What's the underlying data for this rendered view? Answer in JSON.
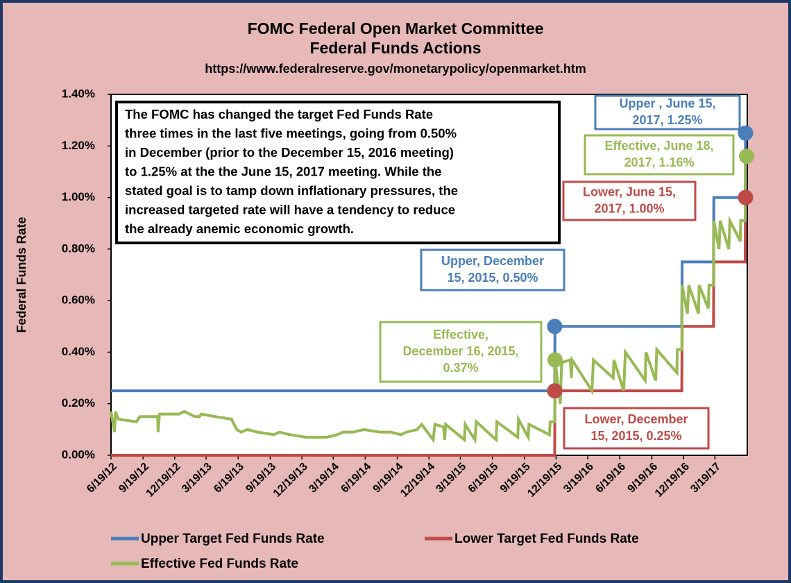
{
  "chart_data": {
    "type": "line",
    "title": "FOMC Federal Open Market Committee",
    "subtitle": "Federal Funds Actions",
    "source": "https://www.federalreserve.gov/monetarypolicy/openmarket.htm",
    "y_label": "Federal Funds Rate",
    "xlim": [
      "2012-06-19",
      "2017-06-20"
    ],
    "xticks": [
      {
        "value": "2012-06-19",
        "label": "6/19/12"
      },
      {
        "value": "2012-09-19",
        "label": "9/19/12"
      },
      {
        "value": "2012-12-19",
        "label": "12/19/12"
      },
      {
        "value": "2013-03-19",
        "label": "3/19/13"
      },
      {
        "value": "2013-06-19",
        "label": "6/19/13"
      },
      {
        "value": "2013-09-19",
        "label": "9/19/13"
      },
      {
        "value": "2013-12-19",
        "label": "12/19/13"
      },
      {
        "value": "2014-03-19",
        "label": "3/19/14"
      },
      {
        "value": "2014-06-19",
        "label": "6/19/14"
      },
      {
        "value": "2014-09-19",
        "label": "9/19/14"
      },
      {
        "value": "2014-12-19",
        "label": "12/19/14"
      },
      {
        "value": "2015-03-19",
        "label": "3/19/15"
      },
      {
        "value": "2015-06-19",
        "label": "6/19/15"
      },
      {
        "value": "2015-09-19",
        "label": "9/19/15"
      },
      {
        "value": "2015-12-19",
        "label": "12/19/15"
      },
      {
        "value": "2016-03-19",
        "label": "3/19/16"
      },
      {
        "value": "2016-06-19",
        "label": "6/19/16"
      },
      {
        "value": "2016-09-19",
        "label": "9/19/16"
      },
      {
        "value": "2016-12-19",
        "label": "12/19/16"
      },
      {
        "value": "2017-03-19",
        "label": "3/19/17"
      }
    ],
    "ylim": [
      0,
      1.4
    ],
    "yticks": [
      {
        "value": 0,
        "label": "0.00%"
      },
      {
        "value": 0.2,
        "label": "0.20%"
      },
      {
        "value": 0.4,
        "label": "0.40%"
      },
      {
        "value": 0.6,
        "label": "0.60%"
      },
      {
        "value": 0.8,
        "label": "0.80%"
      },
      {
        "value": 1.0,
        "label": "1.00%"
      },
      {
        "value": 1.2,
        "label": "1.20%"
      },
      {
        "value": 1.4,
        "label": "1.40%"
      }
    ],
    "grid": false,
    "legend": "bottom",
    "series": [
      {
        "name": "Upper Target Fed Funds Rate",
        "color": "#4a7ebb",
        "x": [
          "2012-06-19",
          "2015-12-15",
          "2015-12-16",
          "2016-12-14",
          "2016-12-15",
          "2017-03-15",
          "2017-03-16",
          "2017-06-14",
          "2017-06-15",
          "2017-06-18"
        ],
        "values": [
          0.25,
          0.25,
          0.5,
          0.5,
          0.75,
          0.75,
          1.0,
          1.0,
          1.25,
          1.25
        ]
      },
      {
        "name": "Lower Target Fed Funds Rate",
        "color": "#be4b48",
        "x": [
          "2012-06-19",
          "2015-12-15",
          "2015-12-16",
          "2016-12-14",
          "2016-12-15",
          "2017-03-15",
          "2017-03-16",
          "2017-06-14",
          "2017-06-15",
          "2017-06-18"
        ],
        "values": [
          0,
          0,
          0.25,
          0.25,
          0.5,
          0.5,
          0.75,
          0.75,
          1.0,
          1.0
        ]
      },
      {
        "name": "Effective Fed Funds Rate",
        "color": "#98b954",
        "x": [
          "2012-06-19",
          "2012-06-29",
          "2012-07-02",
          "2012-07-10",
          "2012-08-31",
          "2012-09-10",
          "2012-10-31",
          "2012-11-01",
          "2012-11-05",
          "2012-12-31",
          "2013-01-15",
          "2013-02-15",
          "2013-02-28",
          "2013-03-05",
          "2013-04-15",
          "2013-05-31",
          "2013-06-15",
          "2013-06-28",
          "2013-07-15",
          "2013-08-15",
          "2013-09-30",
          "2013-10-15",
          "2013-11-15",
          "2013-12-31",
          "2014-01-15",
          "2014-02-28",
          "2014-03-31",
          "2014-04-15",
          "2014-05-15",
          "2014-06-15",
          "2014-07-31",
          "2014-08-31",
          "2014-09-30",
          "2014-10-15",
          "2014-11-15",
          "2014-11-28",
          "2014-12-31",
          "2015-01-05",
          "2015-01-30",
          "2015-02-02",
          "2015-02-05",
          "2015-03-31",
          "2015-04-02",
          "2015-04-30",
          "2015-05-04",
          "2015-06-30",
          "2015-07-02",
          "2015-08-31",
          "2015-09-02",
          "2015-09-30",
          "2015-10-02",
          "2015-11-30",
          "2015-12-02",
          "2015-12-15",
          "2015-12-16",
          "2015-12-31",
          "2016-01-04",
          "2016-01-29",
          "2016-02-01",
          "2016-02-03",
          "2016-03-31",
          "2016-04-04",
          "2016-05-31",
          "2016-06-02",
          "2016-06-30",
          "2016-07-05",
          "2016-08-31",
          "2016-09-02",
          "2016-09-30",
          "2016-10-03",
          "2016-11-30",
          "2016-12-01",
          "2016-12-14",
          "2016-12-15",
          "2016-12-30",
          "2017-01-03",
          "2017-01-31",
          "2017-02-02",
          "2017-02-28",
          "2017-03-02",
          "2017-03-15",
          "2017-03-16",
          "2017-03-31",
          "2017-04-03",
          "2017-04-28",
          "2017-05-01",
          "2017-05-31",
          "2017-06-01",
          "2017-06-14",
          "2017-06-15",
          "2017-06-18"
        ],
        "values": [
          0.17,
          0.09,
          0.17,
          0.14,
          0.13,
          0.15,
          0.15,
          0.09,
          0.16,
          0.16,
          0.17,
          0.15,
          0.15,
          0.16,
          0.15,
          0.14,
          0.1,
          0.09,
          0.1,
          0.09,
          0.08,
          0.09,
          0.08,
          0.07,
          0.07,
          0.07,
          0.08,
          0.09,
          0.09,
          0.1,
          0.09,
          0.09,
          0.08,
          0.09,
          0.1,
          0.12,
          0.06,
          0.12,
          0.11,
          0.06,
          0.12,
          0.06,
          0.12,
          0.06,
          0.13,
          0.06,
          0.13,
          0.07,
          0.14,
          0.07,
          0.12,
          0.08,
          0.13,
          0.13,
          0.37,
          0.2,
          0.36,
          0.37,
          0.3,
          0.37,
          0.25,
          0.37,
          0.3,
          0.37,
          0.25,
          0.4,
          0.29,
          0.4,
          0.29,
          0.41,
          0.32,
          0.41,
          0.41,
          0.66,
          0.55,
          0.66,
          0.55,
          0.66,
          0.57,
          0.66,
          0.66,
          0.91,
          0.8,
          0.91,
          0.8,
          0.91,
          0.83,
          0.91,
          0.91,
          1.16,
          1.16
        ]
      }
    ],
    "note": [
      "The FOMC has changed the target Fed Funds Rate",
      "three times in the last five meetings, going from 0.50%",
      "in December (prior to the December 15, 2016 meeting)",
      "to 1.25% at the the June 15, 2017 meeting.  While the",
      "stated goal is to tamp down inflationary pressures, the",
      "increased targeted rate will have a tendency to reduce",
      "the already anemic economic growth."
    ],
    "annotations": [
      {
        "lines": [
          "Upper, December",
          "15, 2015, 0.50%"
        ],
        "x": "2015-12-15",
        "y": 0.5,
        "color": "#4a7ebb"
      },
      {
        "lines": [
          "Effective,",
          "December 16, 2015,",
          "0.37%"
        ],
        "x": "2015-12-16",
        "y": 0.37,
        "color": "#98b954"
      },
      {
        "lines": [
          "Lower, December",
          "15, 2015, 0.25%"
        ],
        "x": "2015-12-15",
        "y": 0.25,
        "color": "#be4b48"
      },
      {
        "lines": [
          "Upper , June 15,",
          "2017, 1.25%"
        ],
        "x": "2017-06-15",
        "y": 1.25,
        "color": "#4a7ebb"
      },
      {
        "lines": [
          "Effective, June 18,",
          "2017, 1.16%"
        ],
        "x": "2017-06-18",
        "y": 1.16,
        "color": "#98b954"
      },
      {
        "lines": [
          "Lower, June 15,",
          "2017, 1.00%"
        ],
        "x": "2017-06-15",
        "y": 1.0,
        "color": "#be4b48"
      }
    ]
  }
}
